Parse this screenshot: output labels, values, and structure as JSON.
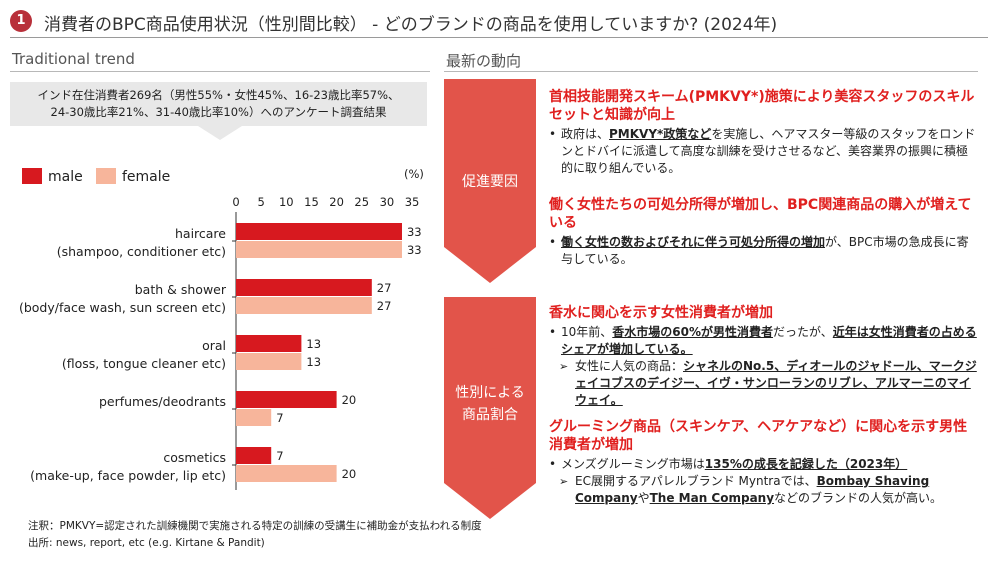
{
  "header": {
    "number": "1",
    "title": "消費者のBPC商品使用状況（性別間比較） - どのブランドの商品を使用していますか? (2024年)"
  },
  "left": {
    "section_label": "Traditional trend",
    "survey_line1": "インド在住消費者269名（男性55%・女性45%、16-23歳比率57%、",
    "survey_line2": "24-30歳比率21%、31-40歳比率10%）へのアンケート調査結果",
    "unit": "(%)"
  },
  "right": {
    "section_label": "最新の動向",
    "arrow1_label": "促進要因",
    "arrow2_line1": "性別による",
    "arrow2_line2": "商品割合",
    "block1_heading": "首相技能開発スキーム(PMKVY*)施策により美容スタッフのスキルセットと知識が向上",
    "block1_bullet_pre": "政府は、",
    "block1_bullet_u": "PMKVY*政策など",
    "block1_bullet_post": "を実施し、ヘアマスター等級のスタッフをロンドンとドバイに派遣して高度な訓練を受けさせるなど、美容業界の振興に積極的に取り組んでいる。",
    "block2_heading": "働く女性たちの可処分所得が増加し、BPC関連商品の購入が増えている",
    "block2_bullet_u": "働く女性の数およびそれに伴う可処分所得の増加",
    "block2_bullet_post": "が、BPC市場の急成長に寄与している。",
    "block3_heading": "香水に関心を示す女性消費者が増加",
    "block3_bullet_pre": "10年前、",
    "block3_bullet_u1": "香水市場の60%が男性消費者",
    "block3_bullet_mid": "だったが、",
    "block3_bullet_u2": "近年は女性消費者の占めるシェアが増加している。",
    "block3_sub_pre": "女性に人気の商品：",
    "block3_sub_u": "シャネルのNo.5、ディオールのジャドール、マークジェイコブスのデイジー、イヴ・サンローランのリブレ、アルマーニのマイウェイ。",
    "block4_heading": "グルーミング商品（スキンケア、ヘアケアなど）に関心を示す男性消費者が増加",
    "block4_bullet_pre": "メンズグルーミング市場は",
    "block4_bullet_u": "135%の成長を記録した（2023年）",
    "block4_sub_pre": "EC展開するアパレルブランド Myntraでは、",
    "block4_sub_u1": "Bombay Shaving Company",
    "block4_sub_mid": "や",
    "block4_sub_u2": "The Man Company",
    "block4_sub_post": "などのブランドの人気が高い。"
  },
  "notes": {
    "line1": "注釈：PMKVY=認定された訓練機関で実施される特定の訓練の受講生に補助金が支払われる制度",
    "line2": "出所: news, report, etc (e.g. Kirtane & Pandit)"
  },
  "colors": {
    "male": "#d7191f",
    "female": "#f7b59b",
    "accent_red": "#e0201f",
    "arrow": "#e2544a",
    "badge": "#b8303a"
  },
  "chart_data": {
    "type": "bar",
    "orientation": "horizontal",
    "categories_line1": [
      "haircare",
      "bath & shower",
      "oral",
      "perfumes/deodrants",
      "cosmetics"
    ],
    "categories_line2": [
      "(shampoo, conditioner etc)",
      "(body/face wash, sun screen etc)",
      "(floss, tongue cleaner etc)",
      "",
      "(make-up, face powder, lip etc)"
    ],
    "series": [
      {
        "name": "male",
        "values": [
          33,
          27,
          13,
          20,
          7
        ]
      },
      {
        "name": "female",
        "values": [
          33,
          27,
          13,
          7,
          20
        ]
      }
    ],
    "xticks": [
      0,
      5,
      10,
      15,
      20,
      25,
      30,
      35
    ],
    "xlim": [
      0,
      35
    ],
    "legend_position": "top-left"
  }
}
